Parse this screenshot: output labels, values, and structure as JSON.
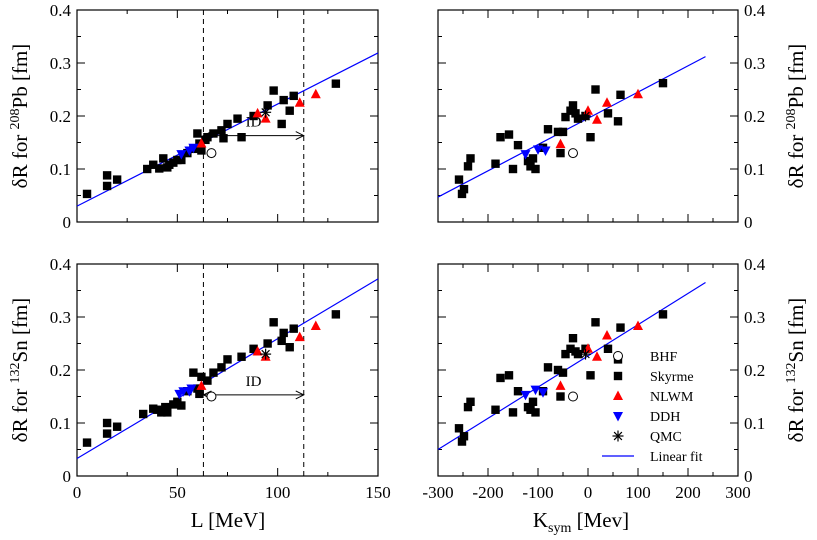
{
  "chart_data": [
    {
      "id": "top-left",
      "type": "scatter",
      "xlabel": "L [MeV]",
      "ylabel": "δR for 208Pb [fm]",
      "ylabel_parts": {
        "pre": "δR for ",
        "sup": "208",
        "post": "Pb [fm]"
      },
      "xlim": [
        0,
        150
      ],
      "ylim": [
        0,
        0.4
      ],
      "xticks": [
        0,
        50,
        100,
        150
      ],
      "yticks": [
        0,
        0.1,
        0.2,
        0.3,
        0.4
      ],
      "ytick_labels": [
        "0",
        "0.1",
        "0.2",
        "0.3",
        "0.4"
      ],
      "xtick_labels": [
        "0",
        "50",
        "100",
        "150"
      ],
      "show_xtick_labels": false,
      "vlines": [
        63,
        113
      ],
      "id_annotation": {
        "label": "ID",
        "x_from": 63,
        "x_to": 113,
        "y": 0.163
      },
      "fit": {
        "x": [
          0,
          150
        ],
        "y": [
          0.03,
          0.319
        ]
      },
      "series": [
        {
          "name": "Skyrme",
          "marker": "square",
          "points": [
            [
              5,
              0.053
            ],
            [
              15,
              0.088
            ],
            [
              15,
              0.068
            ],
            [
              20,
              0.08
            ],
            [
              35,
              0.1
            ],
            [
              38,
              0.108
            ],
            [
              41,
              0.101
            ],
            [
              43,
              0.12
            ],
            [
              45,
              0.103
            ],
            [
              46,
              0.108
            ],
            [
              48,
              0.112
            ],
            [
              50,
              0.117
            ],
            [
              52,
              0.117
            ],
            [
              55,
              0.13
            ],
            [
              58,
              0.138
            ],
            [
              60,
              0.167
            ],
            [
              61,
              0.148
            ],
            [
              62,
              0.135
            ],
            [
              64,
              0.155
            ],
            [
              65,
              0.16
            ],
            [
              68,
              0.167
            ],
            [
              72,
              0.173
            ],
            [
              73,
              0.158
            ],
            [
              75,
              0.185
            ],
            [
              80,
              0.195
            ],
            [
              82,
              0.16
            ],
            [
              88,
              0.2
            ],
            [
              95,
              0.22
            ],
            [
              98,
              0.248
            ],
            [
              102,
              0.185
            ],
            [
              103,
              0.23
            ],
            [
              106,
              0.21
            ],
            [
              108,
              0.238
            ],
            [
              129,
              0.261
            ]
          ]
        },
        {
          "name": "NLWM",
          "marker": "triangle-up",
          "color": "#ff0000",
          "points": [
            [
              62,
              0.148
            ],
            [
              90,
              0.205
            ],
            [
              94,
              0.195
            ],
            [
              111,
              0.225
            ],
            [
              119,
              0.241
            ]
          ]
        },
        {
          "name": "DDH",
          "marker": "triangle-down",
          "color": "#0000ff",
          "points": [
            [
              52,
              0.128
            ],
            [
              56,
              0.135
            ],
            [
              58,
              0.14
            ]
          ]
        },
        {
          "name": "QMC",
          "marker": "star",
          "points": [
            [
              94,
              0.207
            ]
          ]
        },
        {
          "name": "BHF",
          "marker": "circle-open",
          "points": [
            [
              67,
              0.13
            ]
          ]
        }
      ]
    },
    {
      "id": "top-right",
      "type": "scatter",
      "xlabel": "Ksym [Mev]",
      "ylabel": "δR for 208Pb [fm]",
      "ylabel_parts": {
        "pre": "δR for ",
        "sup": "208",
        "post": "Pb [fm]"
      },
      "xlim": [
        -300,
        300
      ],
      "ylim": [
        0,
        0.4
      ],
      "xticks": [
        -300,
        -200,
        -100,
        0,
        100,
        200,
        300
      ],
      "yticks": [
        0,
        0.1,
        0.2,
        0.3,
        0.4
      ],
      "ytick_labels": [
        "0",
        "0.1",
        "0.2",
        "0.3",
        "0.4"
      ],
      "xtick_labels": [
        "-300",
        "-200",
        "-100",
        "0",
        "100",
        "200",
        "300"
      ],
      "show_xtick_labels": false,
      "fit": {
        "x": [
          -300,
          235
        ],
        "y": [
          0.047,
          0.312
        ]
      },
      "series": [
        {
          "name": "Skyrme",
          "marker": "square",
          "points": [
            [
              -258,
              0.08
            ],
            [
              -252,
              0.053
            ],
            [
              -248,
              0.062
            ],
            [
              -240,
              0.105
            ],
            [
              -235,
              0.12
            ],
            [
              -185,
              0.11
            ],
            [
              -175,
              0.16
            ],
            [
              -158,
              0.165
            ],
            [
              -150,
              0.1
            ],
            [
              -140,
              0.145
            ],
            [
              -120,
              0.115
            ],
            [
              -115,
              0.105
            ],
            [
              -110,
              0.12
            ],
            [
              -105,
              0.1
            ],
            [
              -90,
              0.14
            ],
            [
              -80,
              0.175
            ],
            [
              -60,
              0.17
            ],
            [
              -55,
              0.13
            ],
            [
              -50,
              0.17
            ],
            [
              -45,
              0.198
            ],
            [
              -35,
              0.21
            ],
            [
              -30,
              0.22
            ],
            [
              -25,
              0.205
            ],
            [
              -20,
              0.195
            ],
            [
              -5,
              0.2
            ],
            [
              5,
              0.16
            ],
            [
              15,
              0.25
            ],
            [
              40,
              0.205
            ],
            [
              60,
              0.19
            ],
            [
              65,
              0.24
            ],
            [
              150,
              0.262
            ]
          ]
        },
        {
          "name": "NLWM",
          "marker": "triangle-up",
          "color": "#ff0000",
          "points": [
            [
              -55,
              0.147
            ],
            [
              0,
              0.21
            ],
            [
              18,
              0.193
            ],
            [
              38,
              0.225
            ],
            [
              100,
              0.241
            ]
          ]
        },
        {
          "name": "DDH",
          "marker": "triangle-down",
          "color": "#0000ff",
          "points": [
            [
              -125,
              0.128
            ],
            [
              -100,
              0.137
            ],
            [
              -85,
              0.135
            ]
          ]
        },
        {
          "name": "QMC",
          "marker": "star",
          "points": [
            [
              -5,
              0.2
            ]
          ]
        },
        {
          "name": "BHF",
          "marker": "circle-open",
          "points": [
            [
              -30,
              0.13
            ]
          ]
        }
      ]
    },
    {
      "id": "bottom-left",
      "type": "scatter",
      "xlabel": "L [MeV]",
      "ylabel": "δR for 132Sn [fm]",
      "ylabel_parts": {
        "pre": "δR for ",
        "sup": "132",
        "post": "Sn [fm]"
      },
      "xlim": [
        0,
        150
      ],
      "ylim": [
        0,
        0.4
      ],
      "xticks": [
        0,
        50,
        100,
        150
      ],
      "yticks": [
        0,
        0.1,
        0.2,
        0.3,
        0.4
      ],
      "ytick_labels": [
        "0",
        "0.1",
        "0.2",
        "0.3",
        "0.4"
      ],
      "xtick_labels": [
        "0",
        "50",
        "100",
        "150"
      ],
      "show_xtick_labels": true,
      "vlines": [
        63,
        113
      ],
      "id_annotation": {
        "label": "ID",
        "x_from": 63,
        "x_to": 113,
        "y": 0.153
      },
      "fit": {
        "x": [
          0,
          150
        ],
        "y": [
          0.033,
          0.372
        ]
      },
      "series": [
        {
          "name": "Skyrme",
          "marker": "square",
          "points": [
            [
              5,
              0.063
            ],
            [
              15,
              0.1
            ],
            [
              15,
              0.08
            ],
            [
              20,
              0.093
            ],
            [
              33,
              0.117
            ],
            [
              38,
              0.127
            ],
            [
              40,
              0.125
            ],
            [
              42,
              0.12
            ],
            [
              44,
              0.13
            ],
            [
              45,
              0.12
            ],
            [
              48,
              0.135
            ],
            [
              50,
              0.14
            ],
            [
              52,
              0.133
            ],
            [
              55,
              0.16
            ],
            [
              58,
              0.195
            ],
            [
              60,
              0.165
            ],
            [
              61,
              0.155
            ],
            [
              62,
              0.187
            ],
            [
              65,
              0.18
            ],
            [
              68,
              0.195
            ],
            [
              72,
              0.205
            ],
            [
              75,
              0.22
            ],
            [
              82,
              0.225
            ],
            [
              88,
              0.24
            ],
            [
              95,
              0.25
            ],
            [
              98,
              0.29
            ],
            [
              102,
              0.255
            ],
            [
              103,
              0.27
            ],
            [
              106,
              0.243
            ],
            [
              108,
              0.278
            ],
            [
              129,
              0.305
            ]
          ]
        },
        {
          "name": "NLWM",
          "marker": "triangle-up",
          "color": "#ff0000",
          "points": [
            [
              62,
              0.17
            ],
            [
              90,
              0.235
            ],
            [
              94,
              0.225
            ],
            [
              111,
              0.262
            ],
            [
              119,
              0.283
            ]
          ]
        },
        {
          "name": "DDH",
          "marker": "triangle-down",
          "color": "#0000ff",
          "points": [
            [
              51,
              0.155
            ],
            [
              53,
              0.16
            ],
            [
              56,
              0.16
            ],
            [
              57,
              0.165
            ]
          ]
        },
        {
          "name": "QMC",
          "marker": "star",
          "points": [
            [
              94,
              0.23
            ]
          ]
        },
        {
          "name": "BHF",
          "marker": "circle-open",
          "points": [
            [
              67,
              0.15
            ]
          ]
        }
      ]
    },
    {
      "id": "bottom-right",
      "type": "scatter",
      "xlabel": "Ksym [Mev]",
      "ylabel": "δR for 132Sn [fm]",
      "ylabel_parts": {
        "pre": "δR for ",
        "sup": "132",
        "post": "Sn [fm]"
      },
      "xlim": [
        -300,
        300
      ],
      "ylim": [
        0,
        0.4
      ],
      "xticks": [
        -300,
        -200,
        -100,
        0,
        100,
        200,
        300
      ],
      "yticks": [
        0,
        0.1,
        0.2,
        0.3,
        0.4
      ],
      "ytick_labels": [
        "0",
        "0.1",
        "0.2",
        "0.3",
        "0.4"
      ],
      "xtick_labels": [
        "-300",
        "-200",
        "-100",
        "0",
        "100",
        "200",
        "300"
      ],
      "show_xtick_labels": true,
      "fit": {
        "x": [
          -300,
          235
        ],
        "y": [
          0.05,
          0.365
        ]
      },
      "series": [
        {
          "name": "Skyrme",
          "marker": "square",
          "points": [
            [
              -258,
              0.09
            ],
            [
              -252,
              0.065
            ],
            [
              -248,
              0.075
            ],
            [
              -240,
              0.13
            ],
            [
              -235,
              0.14
            ],
            [
              -185,
              0.125
            ],
            [
              -175,
              0.185
            ],
            [
              -158,
              0.19
            ],
            [
              -150,
              0.12
            ],
            [
              -140,
              0.16
            ],
            [
              -120,
              0.13
            ],
            [
              -115,
              0.125
            ],
            [
              -110,
              0.14
            ],
            [
              -105,
              0.12
            ],
            [
              -90,
              0.16
            ],
            [
              -80,
              0.205
            ],
            [
              -60,
              0.2
            ],
            [
              -55,
              0.15
            ],
            [
              -50,
              0.195
            ],
            [
              -45,
              0.23
            ],
            [
              -35,
              0.24
            ],
            [
              -30,
              0.26
            ],
            [
              -25,
              0.235
            ],
            [
              -20,
              0.23
            ],
            [
              -5,
              0.24
            ],
            [
              5,
              0.19
            ],
            [
              15,
              0.29
            ],
            [
              40,
              0.24
            ],
            [
              60,
              0.22
            ],
            [
              65,
              0.28
            ],
            [
              150,
              0.305
            ]
          ]
        },
        {
          "name": "NLWM",
          "marker": "triangle-up",
          "color": "#ff0000",
          "points": [
            [
              -55,
              0.17
            ],
            [
              0,
              0.24
            ],
            [
              18,
              0.225
            ],
            [
              38,
              0.265
            ],
            [
              100,
              0.283
            ]
          ]
        },
        {
          "name": "DDH",
          "marker": "triangle-down",
          "color": "#0000ff",
          "points": [
            [
              -125,
              0.153
            ],
            [
              -105,
              0.163
            ],
            [
              -90,
              0.158
            ]
          ]
        },
        {
          "name": "QMC",
          "marker": "star",
          "points": [
            [
              -5,
              0.23
            ]
          ]
        },
        {
          "name": "BHF",
          "marker": "circle-open",
          "points": [
            [
              -30,
              0.15
            ]
          ]
        }
      ],
      "legend": {
        "placement": "right, lower",
        "items": [
          {
            "label": "BHF",
            "marker": "circle-open"
          },
          {
            "label": "Skyrme",
            "marker": "square"
          },
          {
            "label": "NLWM",
            "marker": "triangle-up",
            "color": "#ff0000"
          },
          {
            "label": "DDH",
            "marker": "triangle-down",
            "color": "#0000ff"
          },
          {
            "label": "QMC",
            "marker": "star"
          },
          {
            "label": "Linear fit",
            "marker": "line",
            "color": "#0000ff"
          }
        ]
      }
    }
  ],
  "bottom_axis_titles": {
    "left": {
      "main": "L [MeV]"
    },
    "right": {
      "main": "K",
      "sub": "sym",
      "tail": " [Mev]"
    }
  }
}
